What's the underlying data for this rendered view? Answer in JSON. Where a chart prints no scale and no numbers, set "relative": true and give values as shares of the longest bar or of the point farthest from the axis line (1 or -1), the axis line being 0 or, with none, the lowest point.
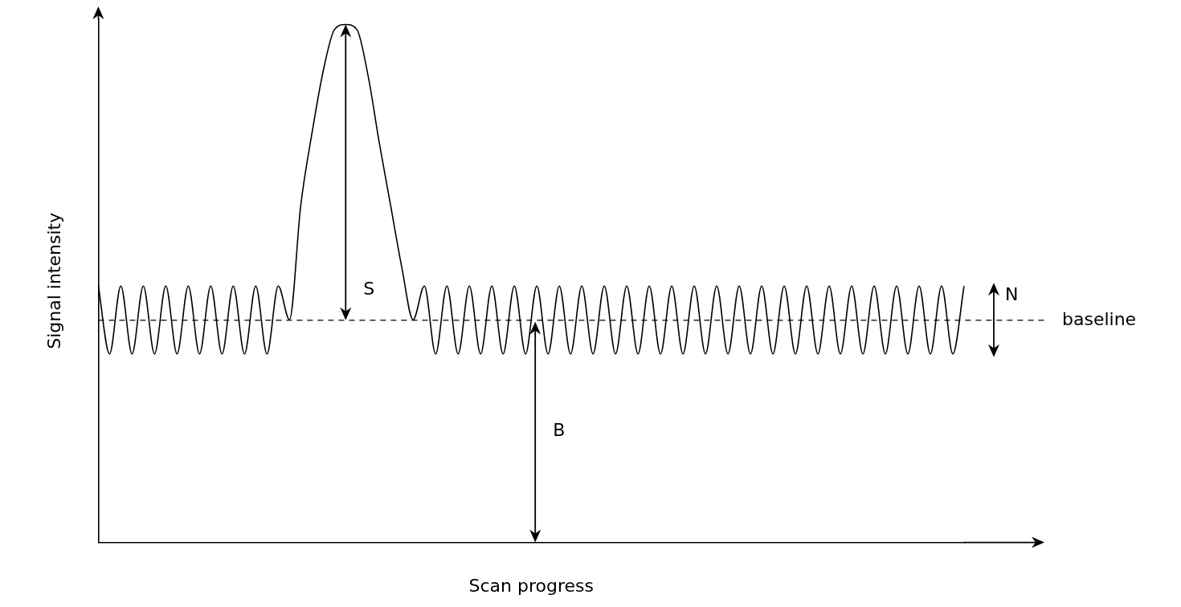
{
  "chart_data": {
    "type": "line",
    "relative": true,
    "xlabel": "Scan progress",
    "ylabel": "Signal intensity",
    "categories": [
      null,
      null,
      null,
      null,
      null,
      null,
      null,
      null,
      null,
      null,
      null,
      null,
      null,
      null,
      null,
      null,
      null,
      null,
      null,
      null,
      null,
      null,
      null,
      null,
      null,
      null,
      null,
      null,
      null,
      null,
      null,
      null,
      null,
      null,
      null,
      null,
      null,
      null,
      null,
      null,
      null,
      null,
      null,
      null,
      null,
      null,
      null,
      null,
      null,
      null,
      null,
      null,
      null,
      null,
      null,
      null,
      null,
      null,
      null,
      null,
      null,
      null,
      null,
      null,
      null,
      null,
      null,
      null,
      null,
      null,
      null,
      null,
      null,
      null,
      null,
      null,
      null,
      null
    ],
    "series": [
      {
        "color": "#000000",
        "values": [
          0.495,
          0.364,
          0.495,
          0.364,
          0.495,
          0.364,
          0.495,
          0.364,
          0.495,
          0.364,
          0.495,
          0.364,
          0.495,
          0.364,
          0.495,
          0.364,
          0.495,
          0.43,
          0.65,
          0.79,
          0.91,
          0.99,
          1,
          0.99,
          0.9,
          0.77,
          0.65,
          0.53,
          0.43,
          0.495,
          0.364,
          0.495,
          0.364,
          0.495,
          0.364,
          0.495,
          0.364,
          0.495,
          0.364,
          0.495,
          0.364,
          0.495,
          0.364,
          0.495,
          0.364,
          0.495,
          0.364,
          0.495,
          0.364,
          0.495,
          0.364,
          0.495,
          0.364,
          0.495,
          0.364,
          0.495,
          0.364,
          0.495,
          0.364,
          0.495,
          0.364,
          0.495,
          0.364,
          0.495,
          0.364,
          0.495,
          0.364,
          0.495,
          0.364,
          0.495,
          0.364,
          0.495,
          0.364,
          0.495,
          0.364,
          0.495,
          0.364,
          0.495
        ]
      }
    ],
    "ref_lines": [
      {
        "axis": "y",
        "value": 0.429,
        "label": "baseline",
        "line_style": "dashed",
        "color": "#000000"
      }
    ],
    "annotations": [
      "S",
      "N",
      "B"
    ],
    "marker": "none",
    "line_style": "solid",
    "grid": false,
    "legend": false,
    "tick_labels": false
  }
}
